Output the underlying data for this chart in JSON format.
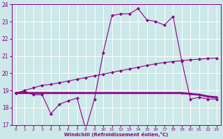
{
  "xlabel": "Windchill (Refroidissement éolien,°C)",
  "background_color": "#cce8e8",
  "grid_color": "#ffffff",
  "line_color": "#880088",
  "xlim_min": -0.5,
  "xlim_max": 23.5,
  "ylim_min": 17,
  "ylim_max": 24,
  "yticks": [
    17,
    18,
    19,
    20,
    21,
    22,
    23,
    24
  ],
  "xticks": [
    0,
    1,
    2,
    3,
    4,
    5,
    6,
    7,
    8,
    9,
    10,
    11,
    12,
    13,
    14,
    15,
    16,
    17,
    18,
    19,
    20,
    21,
    22,
    23
  ],
  "series1_x": [
    0,
    1,
    2,
    3,
    4,
    5,
    6,
    7,
    8,
    9,
    10,
    11,
    12,
    13,
    14,
    15,
    16,
    17,
    18,
    19,
    20,
    21,
    22,
    23
  ],
  "series1_y": [
    18.85,
    18.95,
    18.75,
    18.75,
    17.65,
    18.2,
    18.4,
    18.55,
    16.75,
    18.5,
    21.2,
    23.35,
    23.45,
    23.45,
    23.75,
    23.1,
    23.0,
    22.8,
    23.3,
    20.7,
    18.5,
    18.6,
    18.5,
    18.5
  ],
  "series2_x": [
    0,
    1,
    2,
    3,
    4,
    5,
    6,
    7,
    8,
    9,
    10,
    11,
    12,
    13,
    14,
    15,
    16,
    17,
    18,
    19,
    20,
    21,
    22,
    23
  ],
  "series2_y": [
    18.85,
    19.0,
    19.15,
    19.3,
    19.35,
    19.45,
    19.55,
    19.65,
    19.75,
    19.85,
    19.95,
    20.05,
    20.15,
    20.25,
    20.35,
    20.45,
    20.55,
    20.62,
    20.68,
    20.73,
    20.78,
    20.82,
    20.86,
    20.88
  ],
  "series3_x": [
    0,
    1,
    2,
    3,
    4,
    5,
    6,
    7,
    8,
    9,
    10,
    11,
    12,
    13,
    14,
    15,
    16,
    17,
    18,
    19,
    20,
    21,
    22,
    23
  ],
  "series3_y": [
    18.85,
    18.85,
    18.85,
    18.85,
    18.85,
    18.85,
    18.85,
    18.85,
    18.85,
    18.85,
    18.85,
    18.85,
    18.85,
    18.85,
    18.85,
    18.85,
    18.85,
    18.85,
    18.85,
    18.85,
    18.8,
    18.75,
    18.65,
    18.6
  ]
}
